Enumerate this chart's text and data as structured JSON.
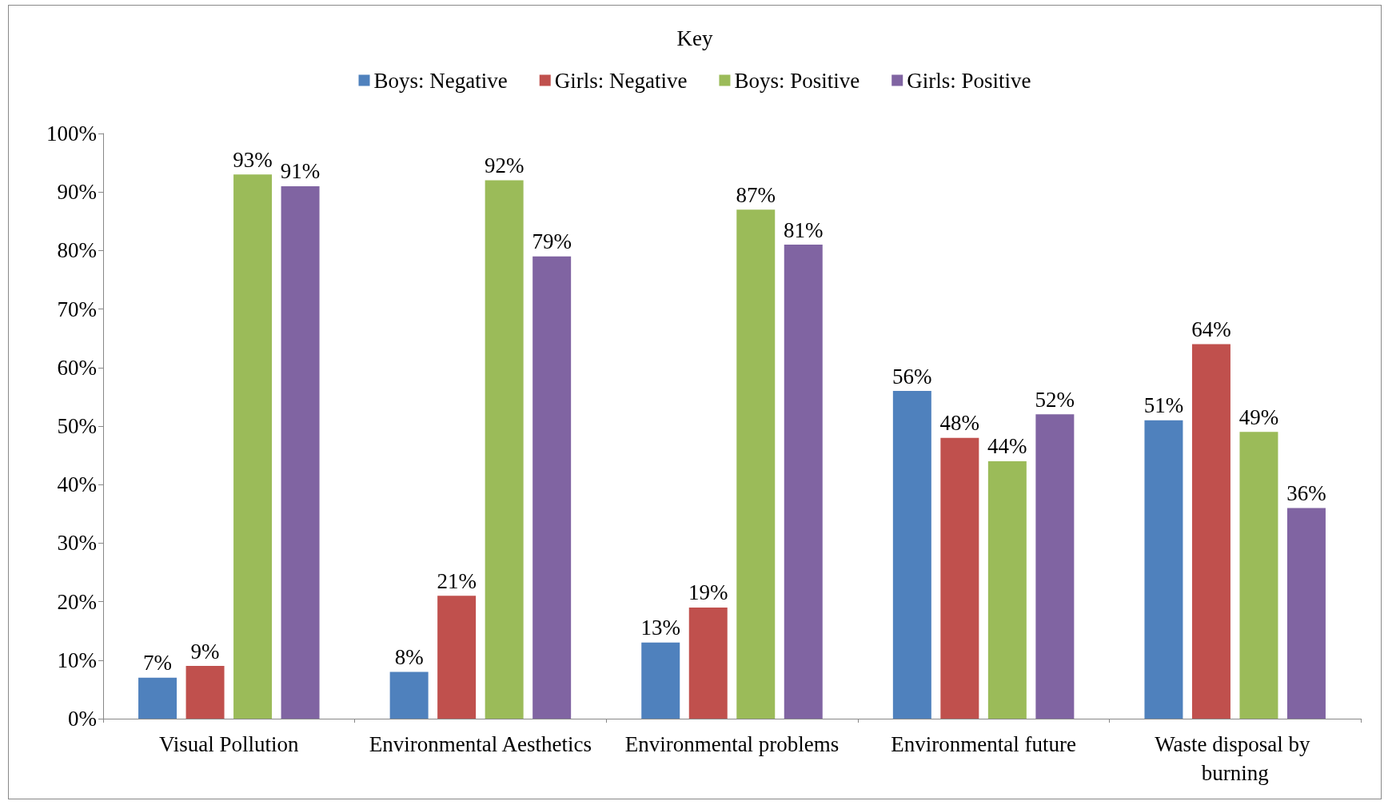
{
  "chart_data": {
    "type": "bar",
    "legend_title": "Key",
    "legend": "top",
    "categories": [
      "Visual Pollution",
      "Environmental Aesthetics",
      "Environmental problems",
      "Environmental future",
      "Waste disposal by burning"
    ],
    "series": [
      {
        "name": "Boys: Negative",
        "color": "#4f81bd",
        "values": [
          7,
          8,
          13,
          56,
          51
        ],
        "value_labels": [
          "7%",
          "8%",
          "13%",
          "56%",
          "51%"
        ]
      },
      {
        "name": "Girls: Negative",
        "color": "#c0504d",
        "values": [
          9,
          21,
          19,
          48,
          64
        ],
        "value_labels": [
          "9%",
          "21%",
          "19%",
          "48%",
          "64%"
        ]
      },
      {
        "name": "Boys: Positive",
        "color": "#9bbb59",
        "values": [
          93,
          92,
          87,
          44,
          49
        ],
        "value_labels": [
          "93%",
          "92%",
          "87%",
          "44%",
          "49%"
        ]
      },
      {
        "name": "Girls: Positive",
        "color": "#8064a2",
        "values": [
          91,
          79,
          81,
          52,
          36
        ],
        "value_labels": [
          "91%",
          "79%",
          "81%",
          "52%",
          "36%"
        ]
      }
    ],
    "ylim": [
      0,
      100
    ],
    "yticks": [
      {
        "value": 0,
        "label": "0%"
      },
      {
        "value": 10,
        "label": "10%"
      },
      {
        "value": 20,
        "label": "20%"
      },
      {
        "value": 30,
        "label": "30%"
      },
      {
        "value": 40,
        "label": "40%"
      },
      {
        "value": 50,
        "label": "50%"
      },
      {
        "value": 60,
        "label": "60%"
      },
      {
        "value": 70,
        "label": "70%"
      },
      {
        "value": 80,
        "label": "80%"
      },
      {
        "value": 90,
        "label": "90%"
      },
      {
        "value": 100,
        "label": "100%"
      }
    ],
    "grid": false
  }
}
